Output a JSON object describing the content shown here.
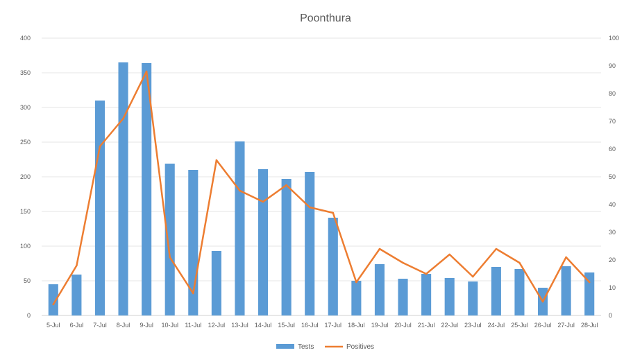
{
  "chart_data": {
    "type": "bar",
    "title": "Poonthura",
    "categories": [
      "5-Jul",
      "6-Jul",
      "7-Jul",
      "8-Jul",
      "9-Jul",
      "10-Jul",
      "11-Jul",
      "12-Jul",
      "13-Jul",
      "14-Jul",
      "15-Jul",
      "16-Jul",
      "17-Jul",
      "18-Jul",
      "19-Jul",
      "20-Jul",
      "21-Jul",
      "22-Jul",
      "23-Jul",
      "24-Jul",
      "25-Jul",
      "26-Jul",
      "27-Jul",
      "28-Jul"
    ],
    "series": [
      {
        "name": "Tests",
        "type": "bar",
        "axis": "left",
        "color": "#5B9BD5",
        "values": [
          45,
          59,
          310,
          365,
          364,
          219,
          210,
          93,
          251,
          211,
          197,
          207,
          141,
          50,
          74,
          53,
          60,
          54,
          49,
          70,
          67,
          40,
          71,
          62
        ]
      },
      {
        "name": "Positives",
        "type": "line",
        "axis": "right",
        "color": "#ED7D31",
        "values": [
          4,
          18,
          61,
          71,
          88,
          21,
          8,
          56,
          45,
          41,
          47,
          39,
          37,
          12,
          24,
          19,
          15,
          22,
          14,
          24,
          19,
          5,
          21,
          12
        ]
      }
    ],
    "ylim": [
      0,
      400
    ],
    "y_ticks": [
      "0",
      "50",
      "100",
      "150",
      "200",
      "250",
      "300",
      "350",
      "400"
    ],
    "y2lim": [
      0,
      100
    ],
    "y2_ticks": [
      "0",
      "10",
      "20",
      "30",
      "40",
      "50",
      "60",
      "70",
      "80",
      "90",
      "100"
    ],
    "grid": true,
    "legend_position": "bottom"
  }
}
